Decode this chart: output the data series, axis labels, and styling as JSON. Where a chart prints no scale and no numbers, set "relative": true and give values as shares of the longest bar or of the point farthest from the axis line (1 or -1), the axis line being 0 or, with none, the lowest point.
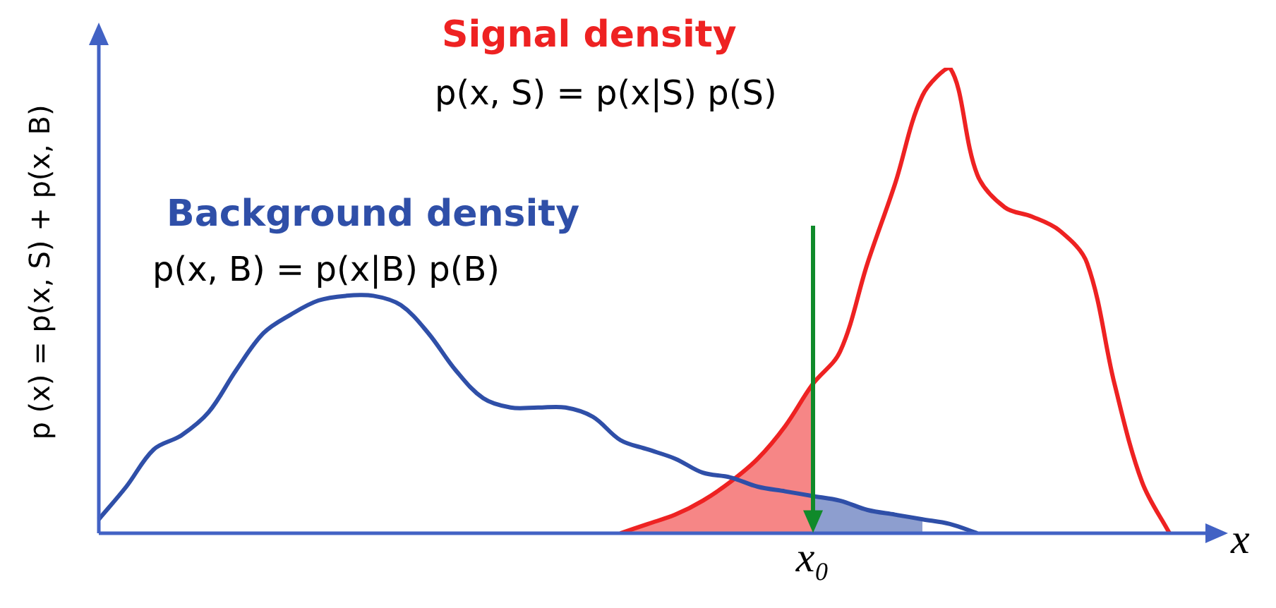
{
  "chart_data": {
    "type": "line",
    "relative": true,
    "title": null,
    "xlabel": "x",
    "ylabel": "p (x) = p(x, S) + p(x, B)",
    "categories": [
      null,
      null,
      null,
      null,
      null,
      null,
      null,
      null,
      null,
      null,
      null,
      null,
      null,
      null,
      null,
      null,
      null,
      null,
      null,
      null,
      null,
      null,
      null,
      null,
      null,
      null,
      null,
      null,
      null,
      null,
      null,
      null,
      null,
      null,
      null,
      null,
      null,
      null,
      null,
      null,
      null
    ],
    "series": [
      {
        "name": "Background density",
        "color": "#2f4fa8",
        "type": "line",
        "values": [
          0.03,
          0.1,
          0.18,
          0.21,
          0.26,
          0.35,
          0.43,
          0.47,
          0.5,
          0.51,
          0.51,
          0.49,
          0.43,
          0.35,
          0.29,
          0.27,
          0.27,
          0.27,
          0.25,
          0.2,
          0.18,
          0.16,
          0.13,
          0.12,
          0.1,
          0.09,
          0.08,
          0.07,
          0.05,
          0.04,
          0.03,
          0.02,
          0.0,
          null,
          null,
          null,
          null,
          null,
          null,
          null,
          null
        ]
      },
      {
        "name": "Signal density",
        "color": "#ee2222",
        "type": "line",
        "values": [
          null,
          null,
          null,
          null,
          null,
          null,
          null,
          null,
          null,
          null,
          null,
          null,
          null,
          null,
          null,
          null,
          null,
          null,
          null,
          0.0,
          0.02,
          0.04,
          0.07,
          0.11,
          0.16,
          0.23,
          0.32,
          0.39,
          0.58,
          0.75,
          0.94,
          1.0,
          0.77,
          0.7,
          0.68,
          0.65,
          0.58,
          0.32,
          0.11,
          0.0,
          null
        ]
      },
      {
        "color": "#ee2222",
        "type": "area",
        "values": [
          null,
          null,
          null,
          null,
          null,
          null,
          null,
          null,
          null,
          null,
          null,
          null,
          null,
          null,
          null,
          null,
          null,
          null,
          null,
          0.0,
          0.02,
          0.04,
          0.07,
          0.11,
          0.16,
          0.23,
          0.32,
          null,
          null,
          null,
          null,
          null,
          null,
          null,
          null,
          null,
          null,
          null,
          null,
          null,
          null
        ]
      },
      {
        "color": "#2f4fa8",
        "type": "area",
        "values": [
          null,
          null,
          null,
          null,
          null,
          null,
          null,
          null,
          null,
          null,
          null,
          null,
          null,
          null,
          null,
          null,
          null,
          null,
          null,
          null,
          null,
          null,
          null,
          null,
          null,
          null,
          0.08,
          0.07,
          0.05,
          0.04,
          0.03,
          null,
          null,
          null,
          null,
          null,
          null,
          null,
          null,
          null,
          null
        ]
      }
    ],
    "annotations": [
      "p(x, B) = p(x|B) p(B)",
      "p(x, S) = p(x|S) p(S)",
      "x₀"
    ],
    "legend": false
  }
}
